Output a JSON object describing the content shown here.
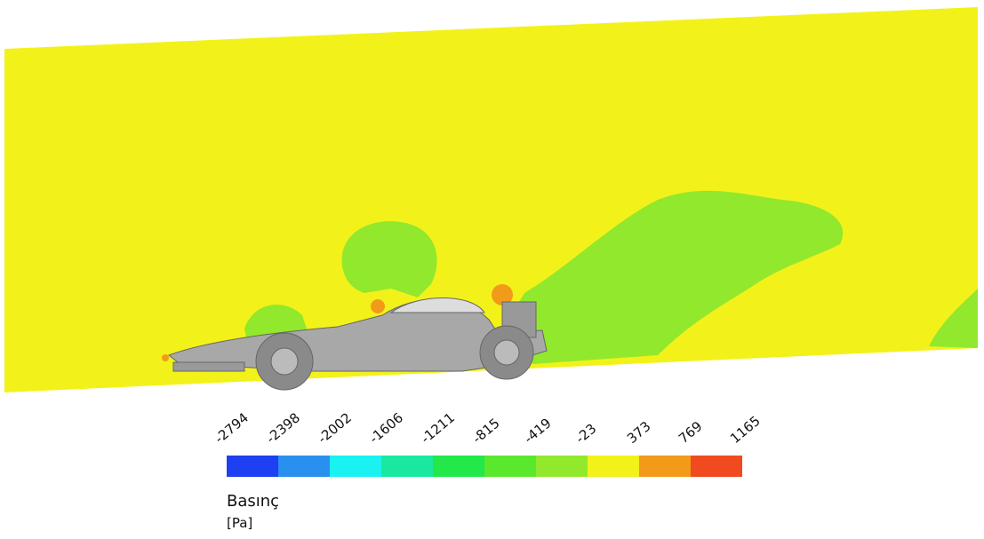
{
  "legend": {
    "title": "Basınç",
    "unit": "[Pa]",
    "ticks": [
      -2794,
      -2398,
      -2002,
      -1606,
      -1211,
      -815,
      -419,
      -23,
      373,
      769,
      1165
    ],
    "colors": [
      "#1f3ff2",
      "#2a90f0",
      "#1af2f2",
      "#1ae8a0",
      "#22e84a",
      "#5ae82c",
      "#92e82c",
      "#f2f21a",
      "#f29a1a",
      "#f04a1e"
    ]
  }
}
